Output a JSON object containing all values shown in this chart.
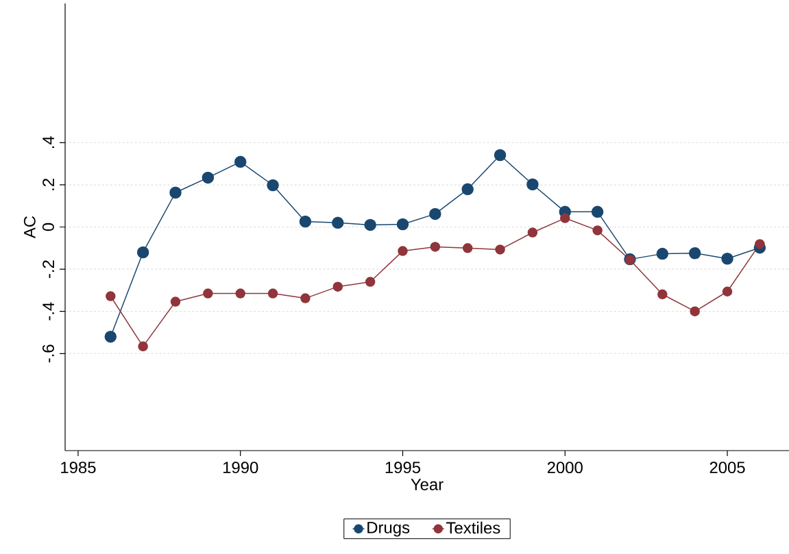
{
  "chart_data": {
    "type": "line",
    "xlabel": "Year",
    "ylabel": "AC",
    "x": [
      1986,
      1987,
      1988,
      1989,
      1990,
      1991,
      1992,
      1993,
      1994,
      1995,
      1996,
      1997,
      1998,
      1999,
      2000,
      2001,
      2002,
      2003,
      2004,
      2005,
      2006
    ],
    "series": [
      {
        "name": "Drugs",
        "color": "#1a476f",
        "values": [
          -0.52,
          -0.12,
          0.163,
          0.234,
          0.309,
          0.198,
          0.026,
          0.02,
          0.01,
          0.013,
          0.062,
          0.179,
          0.341,
          0.202,
          0.072,
          0.072,
          -0.153,
          -0.127,
          -0.124,
          -0.15,
          -0.098
        ]
      },
      {
        "name": "Textiles",
        "color": "#90353b",
        "values": [
          -0.328,
          -0.566,
          -0.354,
          -0.315,
          -0.315,
          -0.315,
          -0.338,
          -0.283,
          -0.26,
          -0.114,
          -0.094,
          -0.1,
          -0.107,
          -0.026,
          0.042,
          -0.016,
          -0.156,
          -0.319,
          -0.4,
          -0.306,
          -0.081
        ]
      }
    ],
    "xlim": [
      1984.6,
      2006.9
    ],
    "ylim": [
      -1.06,
      1.06
    ],
    "xticks": [
      1985,
      1990,
      1995,
      2000,
      2005
    ],
    "yticks": [
      {
        "value": -0.6,
        "label": "-.6"
      },
      {
        "value": -0.4,
        "label": "-.4"
      },
      {
        "value": -0.2,
        "label": "-.2"
      },
      {
        "value": 0,
        "label": "0"
      },
      {
        "value": 0.2,
        "label": ".2"
      },
      {
        "value": 0.4,
        "label": ".4"
      }
    ],
    "grid": "y",
    "legend": "bottom",
    "marker": "circle",
    "line_style": "solid"
  }
}
